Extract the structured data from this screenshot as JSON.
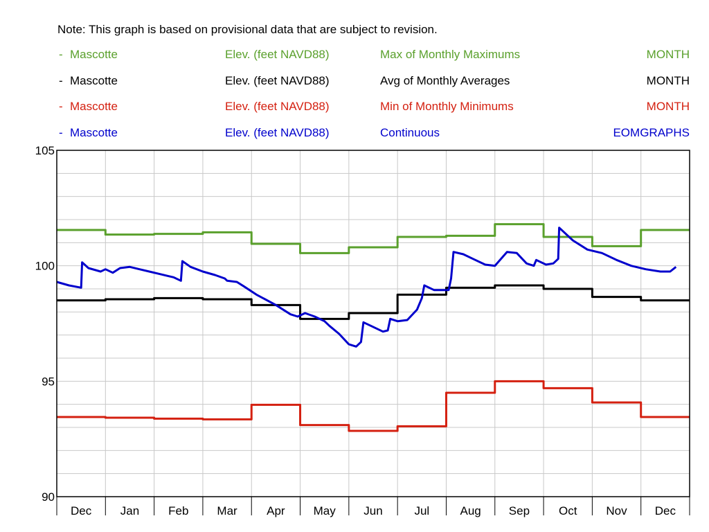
{
  "note": "Note: This graph is based on provisional data that are subject to revision.",
  "legend": [
    {
      "marker": "-",
      "site": "Mascotte",
      "param": "Elev. (feet NAVD88)",
      "stat": "Max of Monthly Maximums",
      "period": "MONTH",
      "color": "#5aa02c"
    },
    {
      "marker": "-",
      "site": "Mascotte",
      "param": "Elev. (feet NAVD88)",
      "stat": "Avg of Monthly Averages",
      "period": "MONTH",
      "color": "#000000"
    },
    {
      "marker": "-",
      "site": "Mascotte",
      "param": "Elev. (feet NAVD88)",
      "stat": "Min of Monthly Minimums",
      "period": "MONTH",
      "color": "#d42010"
    },
    {
      "marker": "-",
      "site": "Mascotte",
      "param": "Elev. (feet NAVD88)",
      "stat": "Continuous",
      "period": "EOMGRAPHS",
      "color": "#0000cc"
    }
  ],
  "chart_data": {
    "type": "line",
    "categories": [
      "Dec",
      "Jan",
      "Feb",
      "Mar",
      "Apr",
      "May",
      "Jun",
      "Jul",
      "Aug",
      "Sep",
      "Oct",
      "Nov",
      "Dec"
    ],
    "ylim": [
      90,
      105
    ],
    "yticks": [
      90,
      95,
      100,
      105
    ],
    "grid": true,
    "series": [
      {
        "name": "Max of Monthly Maximums",
        "color": "#5aa02c",
        "step": true,
        "values": [
          101.55,
          101.35,
          101.38,
          101.45,
          100.95,
          100.55,
          100.8,
          101.25,
          101.3,
          101.8,
          101.25,
          100.85,
          101.55
        ]
      },
      {
        "name": "Avg of Monthly Averages",
        "color": "#000000",
        "step": true,
        "values": [
          98.5,
          98.55,
          98.6,
          98.55,
          98.3,
          97.7,
          97.95,
          98.75,
          99.05,
          99.15,
          99.0,
          98.65,
          98.5
        ]
      },
      {
        "name": "Min of Monthly Minimums",
        "color": "#d42010",
        "step": true,
        "values": [
          93.45,
          93.42,
          93.38,
          93.35,
          93.98,
          93.1,
          92.85,
          93.05,
          94.5,
          95.0,
          94.7,
          94.08,
          93.45
        ]
      },
      {
        "name": "Continuous",
        "color": "#0000cc",
        "step": false,
        "points": [
          [
            0.0,
            99.3
          ],
          [
            0.25,
            99.15
          ],
          [
            0.5,
            99.05
          ],
          [
            0.52,
            100.15
          ],
          [
            0.65,
            99.9
          ],
          [
            0.9,
            99.75
          ],
          [
            1.0,
            99.85
          ],
          [
            1.15,
            99.7
          ],
          [
            1.3,
            99.9
          ],
          [
            1.5,
            99.95
          ],
          [
            1.7,
            99.85
          ],
          [
            1.9,
            99.75
          ],
          [
            2.1,
            99.65
          ],
          [
            2.3,
            99.55
          ],
          [
            2.4,
            99.5
          ],
          [
            2.55,
            99.35
          ],
          [
            2.58,
            100.2
          ],
          [
            2.75,
            99.95
          ],
          [
            3.0,
            99.75
          ],
          [
            3.25,
            99.6
          ],
          [
            3.45,
            99.45
          ],
          [
            3.5,
            99.35
          ],
          [
            3.7,
            99.3
          ],
          [
            3.85,
            99.1
          ],
          [
            4.1,
            98.75
          ],
          [
            4.5,
            98.3
          ],
          [
            4.8,
            97.9
          ],
          [
            4.95,
            97.8
          ],
          [
            5.1,
            97.95
          ],
          [
            5.3,
            97.8
          ],
          [
            5.5,
            97.6
          ],
          [
            5.6,
            97.4
          ],
          [
            5.8,
            97.05
          ],
          [
            6.0,
            96.6
          ],
          [
            6.15,
            96.5
          ],
          [
            6.25,
            96.7
          ],
          [
            6.3,
            97.55
          ],
          [
            6.45,
            97.4
          ],
          [
            6.7,
            97.15
          ],
          [
            6.8,
            97.2
          ],
          [
            6.85,
            97.7
          ],
          [
            7.0,
            97.6
          ],
          [
            7.2,
            97.65
          ],
          [
            7.4,
            98.1
          ],
          [
            7.5,
            98.6
          ],
          [
            7.55,
            99.15
          ],
          [
            7.75,
            98.95
          ],
          [
            8.05,
            98.95
          ],
          [
            8.1,
            99.45
          ],
          [
            8.15,
            100.6
          ],
          [
            8.35,
            100.5
          ],
          [
            8.55,
            100.3
          ],
          [
            8.8,
            100.05
          ],
          [
            9.0,
            100.0
          ],
          [
            9.25,
            100.6
          ],
          [
            9.45,
            100.55
          ],
          [
            9.65,
            100.1
          ],
          [
            9.8,
            100.0
          ],
          [
            9.85,
            100.25
          ],
          [
            10.05,
            100.05
          ],
          [
            10.2,
            100.1
          ],
          [
            10.3,
            100.3
          ],
          [
            10.32,
            101.65
          ],
          [
            10.6,
            101.1
          ],
          [
            10.9,
            100.7
          ],
          [
            11.2,
            100.55
          ],
          [
            11.5,
            100.25
          ],
          [
            11.8,
            100.0
          ],
          [
            12.1,
            99.85
          ],
          [
            12.4,
            99.75
          ],
          [
            12.6,
            99.75
          ],
          [
            12.72,
            99.95
          ]
        ]
      }
    ]
  }
}
